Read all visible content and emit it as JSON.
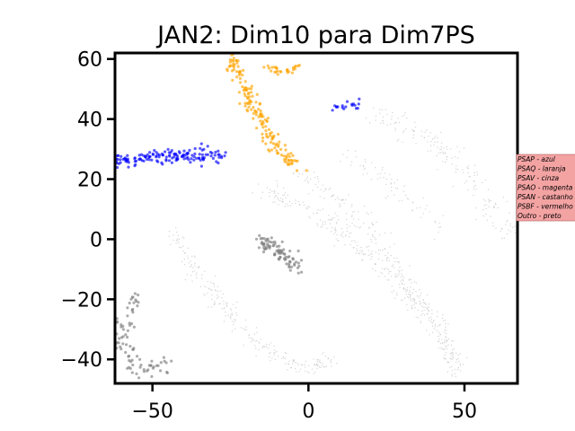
{
  "chart_data": {
    "type": "scatter",
    "title": "JAN2: Dim10 para Dim7PS",
    "xlabel": "",
    "ylabel": "",
    "xlim": [
      -62,
      67
    ],
    "ylim": [
      -48,
      62
    ],
    "xticks": [
      -50,
      0,
      50
    ],
    "xtick_labels": [
      "−50",
      "0",
      "50"
    ],
    "yticks": [
      -40,
      -20,
      0,
      20,
      40,
      60
    ],
    "ytick_labels": [
      "−40",
      "−20",
      "0",
      "20",
      "40",
      "60"
    ],
    "grid": false,
    "legend_position": "right",
    "legend_entries": [
      "PSAP - azul",
      "PSAQ - laranja",
      "PSAV - cinza",
      "PSAO - magenta",
      "PSAN - castanho",
      "PSBF - vermelho",
      "Outro - preto"
    ],
    "legend_background": "#f4a3a3",
    "series": [
      {
        "color": "#0000ff",
        "clusters": [
          {
            "path": [
              [
                -62,
                26
              ],
              [
                -55,
                26.5
              ],
              [
                -47,
                27.5
              ],
              [
                -40,
                28
              ],
              [
                -35,
                27.5
              ],
              [
                -28,
                28
              ]
            ],
            "spread": 1.2,
            "count": 150
          },
          {
            "path": [
              [
                7,
                43
              ],
              [
                11,
                44
              ],
              [
                16,
                45
              ]
            ],
            "spread": 0.7,
            "count": 18
          }
        ]
      },
      {
        "color": "#ffa500",
        "clusters": [
          {
            "path": [
              [
                -24,
                61
              ],
              [
                -25,
                58
              ],
              [
                -22,
                55
              ]
            ],
            "spread": 1.2,
            "count": 35
          },
          {
            "path": [
              [
                -21,
                51
              ],
              [
                -18,
                45
              ],
              [
                -15,
                40
              ],
              [
                -13,
                35
              ],
              [
                -10,
                30
              ],
              [
                -6,
                26
              ],
              [
                -4,
                24
              ]
            ],
            "spread": 1.3,
            "count": 130
          },
          {
            "path": [
              [
                -14,
                58
              ],
              [
                -10,
                56
              ],
              [
                -6,
                56
              ],
              [
                -3,
                58
              ]
            ],
            "spread": 0.5,
            "count": 28
          }
        ]
      },
      {
        "color": "#808080",
        "clusters": [
          {
            "path": [
              [
                -16,
                0
              ],
              [
                -12,
                -2
              ],
              [
                -8,
                -5
              ],
              [
                -5,
                -8
              ],
              [
                -3,
                -10
              ]
            ],
            "spread": 1.3,
            "count": 85
          },
          {
            "path": [
              [
                -55,
                -18
              ],
              [
                -57,
                -25
              ],
              [
                -59,
                -32
              ]
            ],
            "spread": 0.8,
            "count": 22
          },
          {
            "path": [
              [
                -61,
                -27
              ],
              [
                -60,
                -35
              ],
              [
                -58,
                -40
              ],
              [
                -54,
                -42
              ],
              [
                -49,
                -43
              ],
              [
                -45,
                -43
              ]
            ],
            "spread": 1.5,
            "count": 65
          }
        ]
      },
      {
        "color": "#c4c4c4",
        "clusters": [
          {
            "path": [
              [
                -44,
                3
              ],
              [
                -40,
                -5
              ],
              [
                -33,
                -15
              ],
              [
                -25,
                -25
              ],
              [
                -16,
                -35
              ],
              [
                -6,
                -41
              ],
              [
                3,
                -43
              ],
              [
                8,
                -39
              ]
            ],
            "spread": 1.5,
            "count": 240
          },
          {
            "path": [
              [
                -15,
                16
              ],
              [
                -3,
                12
              ],
              [
                8,
                5
              ],
              [
                18,
                -5
              ],
              [
                28,
                -15
              ],
              [
                38,
                -25
              ],
              [
                44,
                -33
              ],
              [
                48,
                -42
              ]
            ],
            "spread": 1.8,
            "count": 280
          },
          {
            "path": [
              [
                -4,
                22
              ],
              [
                8,
                15
              ],
              [
                18,
                5
              ],
              [
                25,
                -5
              ],
              [
                33,
                -16
              ],
              [
                41,
                -28
              ],
              [
                45,
                -38
              ],
              [
                48,
                -45
              ]
            ],
            "spread": 1.6,
            "count": 220
          },
          {
            "path": [
              [
                20,
                42
              ],
              [
                32,
                37
              ],
              [
                42,
                30
              ],
              [
                52,
                20
              ],
              [
                60,
                10
              ],
              [
                66,
                0
              ]
            ],
            "spread": 2.0,
            "count": 180
          },
          {
            "path": [
              [
                10,
                30
              ],
              [
                22,
                22
              ],
              [
                33,
                12
              ],
              [
                44,
                2
              ]
            ],
            "spread": 2.0,
            "count": 70
          }
        ]
      }
    ]
  }
}
